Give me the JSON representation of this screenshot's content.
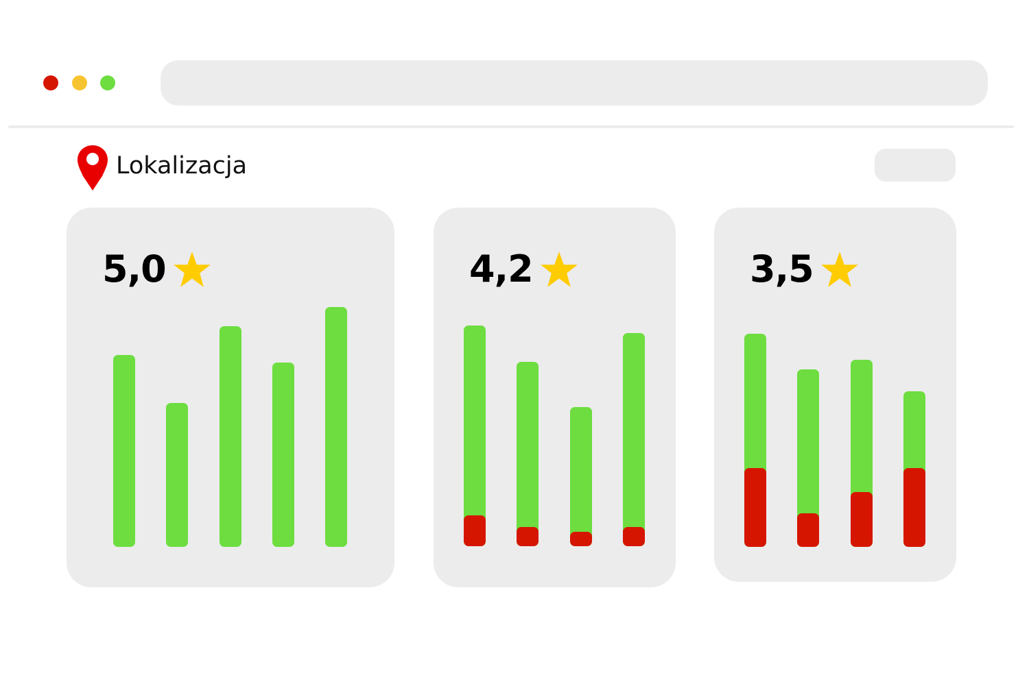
{
  "window": {
    "controls": [
      {
        "name": "close",
        "color": "#d61500"
      },
      {
        "name": "minimize",
        "color": "#f7c431"
      },
      {
        "name": "maximize",
        "color": "#6ddd40"
      }
    ],
    "address_bar": ""
  },
  "header": {
    "location_icon": "map-pin-icon",
    "location_label": "Lokalizacja",
    "action_button": ""
  },
  "colors": {
    "positive": "#6ddd40",
    "negative": "#d61500",
    "star": "#ffcc00",
    "card": "#ececec"
  },
  "cards": [
    {
      "rating": "5,0",
      "icon": "star-icon",
      "bars": [
        {
          "total": 80,
          "negative": 0
        },
        {
          "total": 60,
          "negative": 0
        },
        {
          "total": 92,
          "negative": 0
        },
        {
          "total": 77,
          "negative": 0
        },
        {
          "total": 100,
          "negative": 0
        }
      ]
    },
    {
      "rating": "4,2",
      "icon": "star-icon",
      "bars": [
        {
          "total": 92,
          "negative": 13
        },
        {
          "total": 77,
          "negative": 8
        },
        {
          "total": 58,
          "negative": 6
        },
        {
          "total": 89,
          "negative": 8
        }
      ]
    },
    {
      "rating": "3,5",
      "icon": "star-icon",
      "bars": [
        {
          "total": 89,
          "negative": 33
        },
        {
          "total": 74,
          "negative": 14
        },
        {
          "total": 78,
          "negative": 23
        },
        {
          "total": 65,
          "negative": 33
        }
      ]
    }
  ]
}
